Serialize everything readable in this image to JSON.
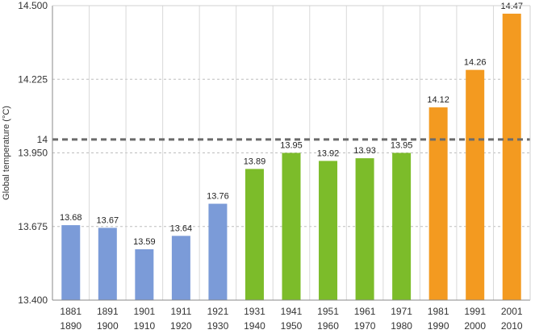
{
  "chart_data": {
    "type": "bar",
    "title": "",
    "xlabel": "",
    "ylabel": "Global temperature (°C)",
    "ylim": [
      13.4,
      14.5
    ],
    "yticks": [
      13.4,
      13.675,
      13.95,
      14.225,
      14.5
    ],
    "ytick_labels": [
      "13.400",
      "13.675",
      "13.950",
      "14.225",
      "14.500"
    ],
    "reference_line": {
      "value": 14,
      "label": "14",
      "style": "dashed",
      "color": "#6b6b6b"
    },
    "categories": [
      [
        "1881",
        "1890"
      ],
      [
        "1891",
        "1900"
      ],
      [
        "1901",
        "1910"
      ],
      [
        "1911",
        "1920"
      ],
      [
        "1921",
        "1930"
      ],
      [
        "1931",
        "1940"
      ],
      [
        "1941",
        "1950"
      ],
      [
        "1951",
        "1960"
      ],
      [
        "1961",
        "1970"
      ],
      [
        "1971",
        "1980"
      ],
      [
        "1981",
        "1990"
      ],
      [
        "1991",
        "2000"
      ],
      [
        "2001",
        "2010"
      ]
    ],
    "values": [
      13.68,
      13.67,
      13.59,
      13.64,
      13.76,
      13.89,
      13.95,
      13.92,
      13.93,
      13.95,
      14.12,
      14.26,
      14.47
    ],
    "value_labels": [
      "13.68",
      "13.67",
      "13.59",
      "13.64",
      "13.76",
      "13.89",
      "13.95",
      "13.92",
      "13.93",
      "13.95",
      "14.12",
      "14.26",
      "14.47"
    ],
    "bar_colors": [
      "#7b9bd8",
      "#7b9bd8",
      "#7b9bd8",
      "#7b9bd8",
      "#7b9bd8",
      "#7cbc2a",
      "#7cbc2a",
      "#7cbc2a",
      "#7cbc2a",
      "#7cbc2a",
      "#f39a20",
      "#f39a20",
      "#f39a20"
    ],
    "grid": true,
    "grid_color": "#bdbdbd",
    "axis_color": "#8a8a8a"
  }
}
